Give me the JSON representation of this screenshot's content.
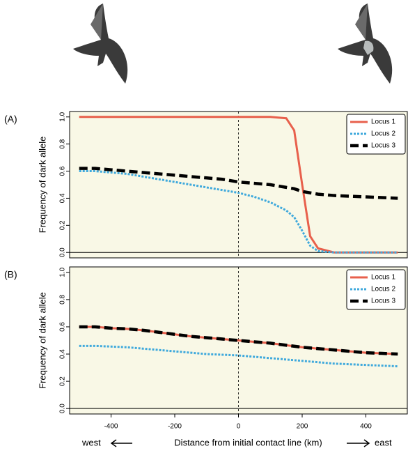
{
  "chart_data": [
    {
      "type": "line",
      "panel_label": "(A)",
      "ylabel": "Frequency of dark allele",
      "x": [
        -500,
        -450,
        -400,
        -350,
        -300,
        -250,
        -200,
        -150,
        -100,
        -50,
        0,
        50,
        100,
        150,
        175,
        200,
        225,
        250,
        300,
        350,
        400,
        450,
        500
      ],
      "series": [
        {
          "name": "Locus 1",
          "color": "#e8604c",
          "linestyle": "solid",
          "values": [
            1,
            1,
            1,
            1,
            1,
            1,
            1,
            1,
            1,
            1,
            1,
            1,
            1,
            0.99,
            0.9,
            0.5,
            0.12,
            0.03,
            0,
            0,
            0,
            0,
            0
          ]
        },
        {
          "name": "Locus 2",
          "color": "#3fa9dc",
          "linestyle": "dotted",
          "values": [
            0.6,
            0.6,
            0.59,
            0.58,
            0.56,
            0.54,
            0.52,
            0.5,
            0.48,
            0.46,
            0.44,
            0.41,
            0.37,
            0.31,
            0.26,
            0.16,
            0.05,
            0.01,
            0,
            0,
            0,
            0,
            0
          ]
        },
        {
          "name": "Locus 3",
          "color": "#000000",
          "linestyle": "dashed",
          "values": [
            0.62,
            0.62,
            0.61,
            0.6,
            0.59,
            0.58,
            0.57,
            0.56,
            0.55,
            0.54,
            0.52,
            0.51,
            0.5,
            0.48,
            0.47,
            0.45,
            0.44,
            0.43,
            0.42,
            0.415,
            0.41,
            0.405,
            0.4
          ]
        }
      ],
      "xlim": [
        -530,
        530
      ],
      "ylim": [
        -0.04,
        1.04
      ],
      "yticks": [
        {
          "value": 0,
          "label": "0.0"
        },
        0.2,
        0.4,
        0.6,
        0.8,
        {
          "value": 1,
          "label": "1.0"
        }
      ],
      "background": "#f9f8e6",
      "legend": "upper right",
      "grid": false
    },
    {
      "type": "line",
      "panel_label": "(B)",
      "ylabel": "Frequency of dark allele",
      "xlabel": "Distance from initial contact line (km)",
      "annotations": [
        "west",
        "east"
      ],
      "x": [
        -500,
        -450,
        -400,
        -350,
        -300,
        -250,
        -200,
        -150,
        -100,
        -50,
        0,
        50,
        100,
        150,
        200,
        250,
        300,
        350,
        400,
        450,
        500
      ],
      "series": [
        {
          "name": "Locus 1",
          "color": "#e8604c",
          "linestyle": "solid",
          "values": [
            0.6,
            0.6,
            0.59,
            0.585,
            0.575,
            0.56,
            0.545,
            0.53,
            0.52,
            0.51,
            0.5,
            0.49,
            0.48,
            0.465,
            0.45,
            0.44,
            0.43,
            0.42,
            0.41,
            0.405,
            0.4
          ]
        },
        {
          "name": "Locus 2",
          "color": "#3fa9dc",
          "linestyle": "dotted",
          "values": [
            0.46,
            0.46,
            0.455,
            0.45,
            0.44,
            0.43,
            0.42,
            0.41,
            0.4,
            0.395,
            0.39,
            0.38,
            0.37,
            0.36,
            0.35,
            0.34,
            0.33,
            0.325,
            0.32,
            0.315,
            0.31
          ]
        },
        {
          "name": "Locus 3",
          "color": "#000000",
          "linestyle": "dashed",
          "values": [
            0.6,
            0.6,
            0.59,
            0.585,
            0.575,
            0.56,
            0.545,
            0.53,
            0.52,
            0.51,
            0.5,
            0.49,
            0.48,
            0.465,
            0.45,
            0.44,
            0.43,
            0.42,
            0.41,
            0.405,
            0.4
          ]
        }
      ],
      "xlim": [
        -530,
        530
      ],
      "ylim": [
        -0.04,
        1.04
      ],
      "xticks": [
        -400,
        -200,
        0,
        200,
        400
      ],
      "yticks": [
        {
          "value": 0,
          "label": "0.0"
        },
        0.2,
        0.4,
        0.6,
        0.8,
        {
          "value": 1,
          "label": "1.0"
        }
      ],
      "background": "#f9f8e6",
      "legend": "upper right",
      "grid": false
    }
  ]
}
